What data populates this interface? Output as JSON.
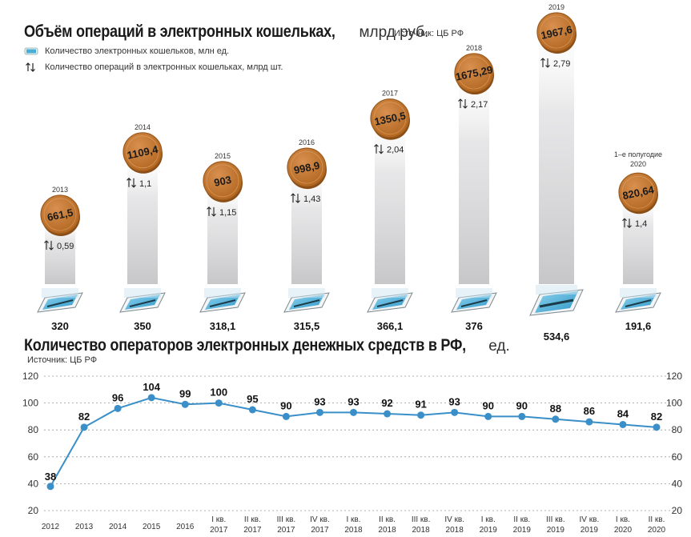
{
  "chart_data": [
    {
      "type": "bar",
      "title": "Объём операций в электронных кошельках,",
      "title_unit": "млрд руб.",
      "source": "Источник: ЦБ РФ",
      "legend": [
        {
          "label": "Количество электронных кошельков, млн ед.",
          "icon": "phone-icon"
        },
        {
          "label": "Количество операций в электронных кошельках, млрд шт.",
          "icon": "arrows-updown-icon"
        }
      ],
      "categories": [
        "2013",
        "2014",
        "2015",
        "2016",
        "2017",
        "2018",
        "2019",
        "1–е полугодие 2020"
      ],
      "series": [
        {
          "name": "Объём операций в электронных кошельках, млрд руб.",
          "values": [
            661.5,
            1109.4,
            903,
            998.9,
            1350.5,
            1675.29,
            1967.6,
            820.64
          ],
          "labels": [
            "661,5",
            "1109,4",
            "903",
            "998,9",
            "1350,5",
            "1675,29",
            "1967,6",
            "820,64"
          ]
        },
        {
          "name": "Количество операций в электронных кошельках, млрд шт.",
          "values": [
            0.59,
            1.1,
            1.15,
            1.43,
            2.04,
            2.17,
            2.79,
            1.4
          ],
          "labels": [
            "0,59",
            "1,1",
            "1,15",
            "1,43",
            "2,04",
            "2,17",
            "2,79",
            "1,4"
          ]
        },
        {
          "name": "Количество электронных кошельков, млн ед.",
          "values": [
            320,
            350,
            318.1,
            315.5,
            366.1,
            376,
            534.6,
            191.6
          ],
          "labels": [
            "320",
            "350",
            "318,1",
            "315,5",
            "366,1",
            "376",
            "534,6",
            "191,6"
          ]
        }
      ],
      "accent_coin": "#c0772e",
      "accent_phone": "#4aaed4"
    },
    {
      "type": "line",
      "title": "Количество операторов электронных денежных средств в РФ,",
      "title_unit": "ед.",
      "source": "Источник: ЦБ РФ",
      "categories": [
        "2012",
        "2013",
        "2014",
        "2015",
        "2016",
        "I кв. 2017",
        "II кв. 2017",
        "III кв. 2017",
        "IV кв. 2017",
        "I кв. 2018",
        "II кв. 2018",
        "III кв. 2018",
        "IV кв. 2018",
        "I кв. 2019",
        "II кв. 2019",
        "III кв. 2019",
        "IV кв. 2019",
        "I кв. 2020",
        "II кв. 2020"
      ],
      "values": [
        38,
        82,
        96,
        104,
        99,
        100,
        95,
        90,
        93,
        93,
        92,
        91,
        93,
        90,
        90,
        88,
        86,
        84,
        82
      ],
      "yticks": [
        "20",
        "40",
        "60",
        "80",
        "100",
        "120"
      ],
      "ylim": [
        20,
        120
      ],
      "grid": true,
      "line_color": "#3a8fc9"
    }
  ]
}
